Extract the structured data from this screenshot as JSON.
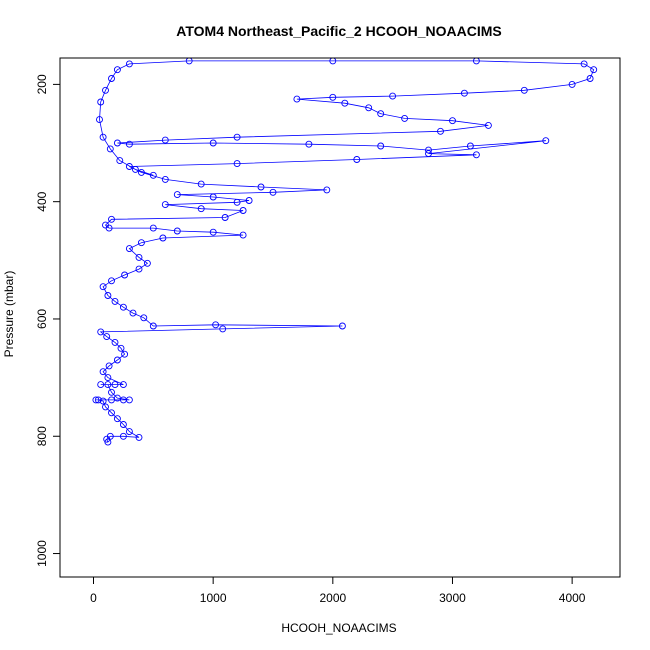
{
  "chart_data": {
    "type": "scatter",
    "title": "ATOM4 Northeast_Pacific_2 HCOOH_NOAACIMS",
    "xlabel": "HCOOH_NOAACIMS",
    "ylabel": "Pressure (mbar)",
    "xlim": [
      -280,
      4400
    ],
    "ylim": [
      1040,
      155
    ],
    "y_reversed": true,
    "x_ticks": [
      0,
      1000,
      2000,
      3000,
      4000
    ],
    "x_tick_labels": [
      "0",
      "1000",
      "2000",
      "3000",
      "4000"
    ],
    "y_ticks": [
      200,
      400,
      600,
      800,
      1000
    ],
    "y_tick_labels": [
      "200",
      "400",
      "600",
      "800",
      "1000"
    ],
    "grid": false,
    "legend": "none",
    "marker": "open-circle",
    "connect_points": true,
    "series_color": "#0000ff",
    "series": [
      {
        "points": [
          [
            120,
            810
          ],
          [
            110,
            805
          ],
          [
            140,
            800
          ],
          [
            250,
            800
          ],
          [
            380,
            802
          ],
          [
            300,
            792
          ],
          [
            250,
            780
          ],
          [
            200,
            770
          ],
          [
            150,
            760
          ],
          [
            100,
            750
          ],
          [
            80,
            740
          ],
          [
            40,
            738
          ],
          [
            20,
            738
          ],
          [
            150,
            738
          ],
          [
            250,
            738
          ],
          [
            300,
            738
          ],
          [
            200,
            735
          ],
          [
            150,
            725
          ],
          [
            120,
            712
          ],
          [
            60,
            712
          ],
          [
            180,
            712
          ],
          [
            250,
            712
          ],
          [
            120,
            700
          ],
          [
            80,
            690
          ],
          [
            130,
            680
          ],
          [
            200,
            670
          ],
          [
            260,
            660
          ],
          [
            230,
            650
          ],
          [
            180,
            640
          ],
          [
            110,
            630
          ],
          [
            60,
            622
          ],
          [
            1080,
            617
          ],
          [
            2080,
            612
          ],
          [
            1020,
            610
          ],
          [
            500,
            612
          ],
          [
            420,
            598
          ],
          [
            330,
            590
          ],
          [
            250,
            580
          ],
          [
            180,
            570
          ],
          [
            120,
            560
          ],
          [
            80,
            545
          ],
          [
            150,
            535
          ],
          [
            260,
            525
          ],
          [
            380,
            515
          ],
          [
            450,
            505
          ],
          [
            380,
            495
          ],
          [
            300,
            480
          ],
          [
            400,
            470
          ],
          [
            580,
            462
          ],
          [
            1250,
            457
          ],
          [
            1000,
            452
          ],
          [
            700,
            450
          ],
          [
            500,
            445
          ],
          [
            130,
            445
          ],
          [
            100,
            440
          ],
          [
            150,
            430
          ],
          [
            1100,
            427
          ],
          [
            1250,
            415
          ],
          [
            900,
            412
          ],
          [
            600,
            405
          ],
          [
            1200,
            401
          ],
          [
            1300,
            398
          ],
          [
            1000,
            392
          ],
          [
            700,
            388
          ],
          [
            1500,
            384
          ],
          [
            1950,
            380
          ],
          [
            1400,
            375
          ],
          [
            900,
            370
          ],
          [
            600,
            362
          ],
          [
            400,
            350
          ],
          [
            300,
            340
          ],
          [
            1200,
            335
          ],
          [
            2200,
            328
          ],
          [
            3200,
            320
          ],
          [
            2800,
            318
          ],
          [
            3780,
            296
          ],
          [
            3150,
            305
          ],
          [
            2800,
            312
          ],
          [
            2400,
            305
          ],
          [
            1800,
            302
          ],
          [
            1000,
            300
          ],
          [
            300,
            302
          ],
          [
            200,
            300
          ],
          [
            600,
            295
          ],
          [
            1200,
            290
          ],
          [
            2900,
            280
          ],
          [
            3300,
            270
          ],
          [
            3000,
            262
          ],
          [
            2600,
            258
          ],
          [
            2400,
            250
          ],
          [
            2300,
            240
          ],
          [
            2100,
            232
          ],
          [
            1700,
            225
          ],
          [
            2000,
            222
          ],
          [
            2500,
            220
          ],
          [
            3100,
            215
          ],
          [
            3600,
            210
          ],
          [
            4000,
            200
          ],
          [
            4150,
            190
          ],
          [
            4180,
            175
          ],
          [
            4100,
            165
          ],
          [
            3200,
            160
          ],
          [
            2000,
            160
          ],
          [
            800,
            160
          ],
          [
            300,
            165
          ],
          [
            200,
            175
          ],
          [
            150,
            190
          ],
          [
            100,
            210
          ],
          [
            60,
            230
          ],
          [
            50,
            260
          ],
          [
            80,
            290
          ],
          [
            140,
            310
          ],
          [
            220,
            330
          ],
          [
            350,
            345
          ],
          [
            500,
            355
          ]
        ]
      }
    ]
  }
}
